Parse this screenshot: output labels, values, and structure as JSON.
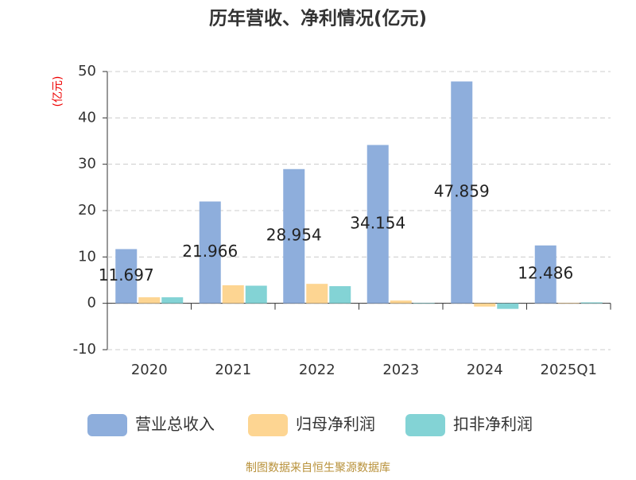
{
  "chart_data": {
    "type": "bar",
    "title": "历年营收、净利情况(亿元)",
    "y_axis_label": "(亿元)",
    "categories": [
      "2020",
      "2021",
      "2022",
      "2023",
      "2024",
      "2025Q1"
    ],
    "series": [
      {
        "name": "营业总收入",
        "color": "#8eaedc",
        "values": [
          11.697,
          21.966,
          28.954,
          34.154,
          47.859,
          12.486
        ],
        "data_labels": true
      },
      {
        "name": "归母净利润",
        "color": "#fdd592",
        "values": [
          1.3,
          3.9,
          4.2,
          0.6,
          -0.7,
          0.1
        ]
      },
      {
        "name": "扣非净利润",
        "color": "#83d3d5",
        "values": [
          1.3,
          3.8,
          3.7,
          0.1,
          -1.2,
          0.2
        ]
      }
    ],
    "ylim": [
      -10,
      50
    ],
    "yticks": [
      -10,
      0,
      10,
      20,
      30,
      40,
      50
    ],
    "grid": true,
    "legend": "bottom",
    "source": "制图数据来自恒生聚源数据库"
  }
}
